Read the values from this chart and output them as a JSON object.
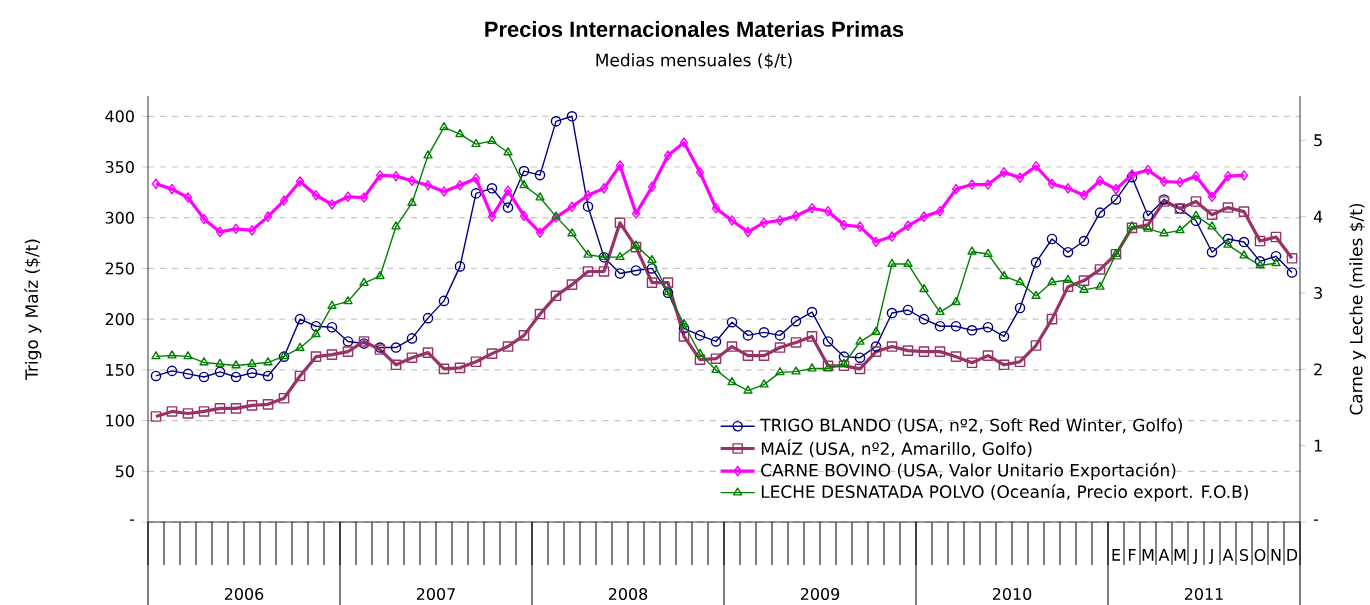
{
  "chart_data": {
    "type": "line",
    "title": "Precios Internacionales Materias Primas",
    "subtitle": "Medias mensuales ($/t)",
    "ylabel": "Trigo y Maíz ($/t)",
    "y2label": "Carne y Leche (miles $/t)",
    "categories": [
      null,
      null,
      null,
      null,
      null,
      null,
      null,
      null,
      null,
      null,
      null,
      null,
      null,
      null,
      null,
      null,
      null,
      null,
      null,
      null,
      null,
      null,
      null,
      null,
      null,
      null,
      null,
      null,
      null,
      null,
      null,
      null,
      null,
      null,
      null,
      null,
      null,
      null,
      null,
      null,
      null,
      null,
      null,
      null,
      null,
      null,
      null,
      null,
      null,
      null,
      null,
      null,
      null,
      null,
      null,
      null,
      null,
      null,
      null,
      null,
      "E",
      "F",
      "M",
      "A",
      "M",
      "J",
      "J",
      "A",
      "S",
      "O",
      "N",
      "D"
    ],
    "annotations": [
      "2006",
      "2007",
      "2008",
      "2009",
      "2010",
      "2011"
    ],
    "series": [
      {
        "name": "TRIGO BLANDO (USA, nº2, Soft Red Winter, Golfo)",
        "color": "#000080",
        "marker": "circle",
        "values": [
          144,
          149,
          146,
          143,
          148,
          143,
          147,
          144,
          163,
          200,
          193,
          192,
          178,
          176,
          172,
          172,
          181,
          201,
          218,
          252,
          324,
          329,
          310,
          346,
          342,
          395,
          400,
          311,
          261,
          245,
          248,
          250,
          226,
          191,
          184,
          178,
          197,
          184,
          187,
          184,
          198,
          207,
          178,
          163,
          162,
          173,
          206,
          209,
          200,
          193,
          193,
          189,
          192,
          183,
          211,
          256,
          279,
          266,
          277,
          305,
          318,
          340,
          302,
          318,
          309,
          297,
          266,
          279,
          276,
          257,
          262,
          246
        ]
      },
      {
        "name": "MAÍZ (USA, nº2, Amarillo, Golfo)",
        "color": "#993366",
        "marker": "square",
        "values": [
          104,
          109,
          107,
          109,
          112,
          112,
          115,
          116,
          122,
          144,
          163,
          165,
          168,
          178,
          170,
          155,
          162,
          167,
          151,
          152,
          158,
          166,
          173,
          184,
          205,
          223,
          234,
          247,
          247,
          295,
          271,
          236,
          236,
          183,
          160,
          161,
          173,
          164,
          164,
          172,
          177,
          183,
          154,
          154,
          151,
          168,
          173,
          169,
          168,
          168,
          163,
          157,
          164,
          155,
          158,
          174,
          200,
          232,
          238,
          249,
          264,
          290,
          293,
          316,
          309,
          316,
          303,
          310,
          306,
          277,
          281,
          260
        ]
      },
      {
        "name": "CARNE BOVINO (USA, Valor Unitario Exportación)",
        "color": "#ff00ff",
        "marker": "diamond",
        "axis": "y2",
        "values": [
          4.43,
          4.36,
          4.25,
          3.97,
          3.8,
          3.84,
          3.82,
          4.0,
          4.21,
          4.46,
          4.28,
          4.16,
          4.26,
          4.25,
          4.54,
          4.53,
          4.47,
          4.41,
          4.33,
          4.41,
          4.5,
          4.0,
          4.34,
          4.01,
          3.79,
          3.99,
          4.13,
          4.28,
          4.37,
          4.67,
          4.04,
          4.39,
          4.8,
          4.97,
          4.58,
          4.11,
          3.95,
          3.8,
          3.92,
          3.95,
          4.01,
          4.11,
          4.07,
          3.89,
          3.87,
          3.67,
          3.74,
          3.88,
          4.0,
          4.07,
          4.36,
          4.42,
          4.42,
          4.58,
          4.51,
          4.66,
          4.43,
          4.37,
          4.28,
          4.47,
          4.36,
          4.55,
          4.61,
          4.46,
          4.45,
          4.53,
          4.26,
          4.53,
          4.54,
          null,
          null,
          null
        ]
      },
      {
        "name": "LECHE DESNATADA POLVO (Oceanía, Precio export. F.O.B)",
        "color": "#008000",
        "marker": "triangle",
        "axis": "y2",
        "values": [
          2.17,
          2.18,
          2.17,
          2.09,
          2.07,
          2.05,
          2.07,
          2.09,
          2.17,
          2.28,
          2.46,
          2.83,
          2.89,
          3.13,
          3.22,
          3.87,
          4.18,
          4.8,
          5.17,
          5.08,
          4.95,
          4.99,
          4.84,
          4.41,
          4.25,
          4.0,
          3.78,
          3.5,
          3.47,
          3.47,
          3.62,
          3.43,
          3.01,
          2.59,
          2.2,
          1.99,
          1.83,
          1.72,
          1.8,
          1.96,
          1.97,
          2.01,
          2.01,
          2.07,
          2.36,
          2.49,
          3.38,
          3.38,
          3.05,
          2.75,
          2.88,
          3.54,
          3.51,
          3.22,
          3.14,
          2.96,
          3.14,
          3.17,
          3.04,
          3.08,
          3.51,
          3.87,
          3.84,
          3.78,
          3.82,
          4.01,
          3.87,
          3.63,
          3.49,
          3.36,
          3.39,
          null
        ]
      }
    ],
    "ylim": [
      0,
      420
    ],
    "yticks": [
      {
        "value": 0,
        "label": "-"
      },
      50,
      100,
      150,
      200,
      250,
      300,
      350,
      400
    ],
    "y2lim": [
      0,
      5.58
    ],
    "y2ticks": [
      {
        "value": 0,
        "label": "-"
      },
      1,
      2,
      3,
      4,
      5
    ],
    "grid": "y",
    "legend": "bottom right",
    "line_style": "solid"
  }
}
